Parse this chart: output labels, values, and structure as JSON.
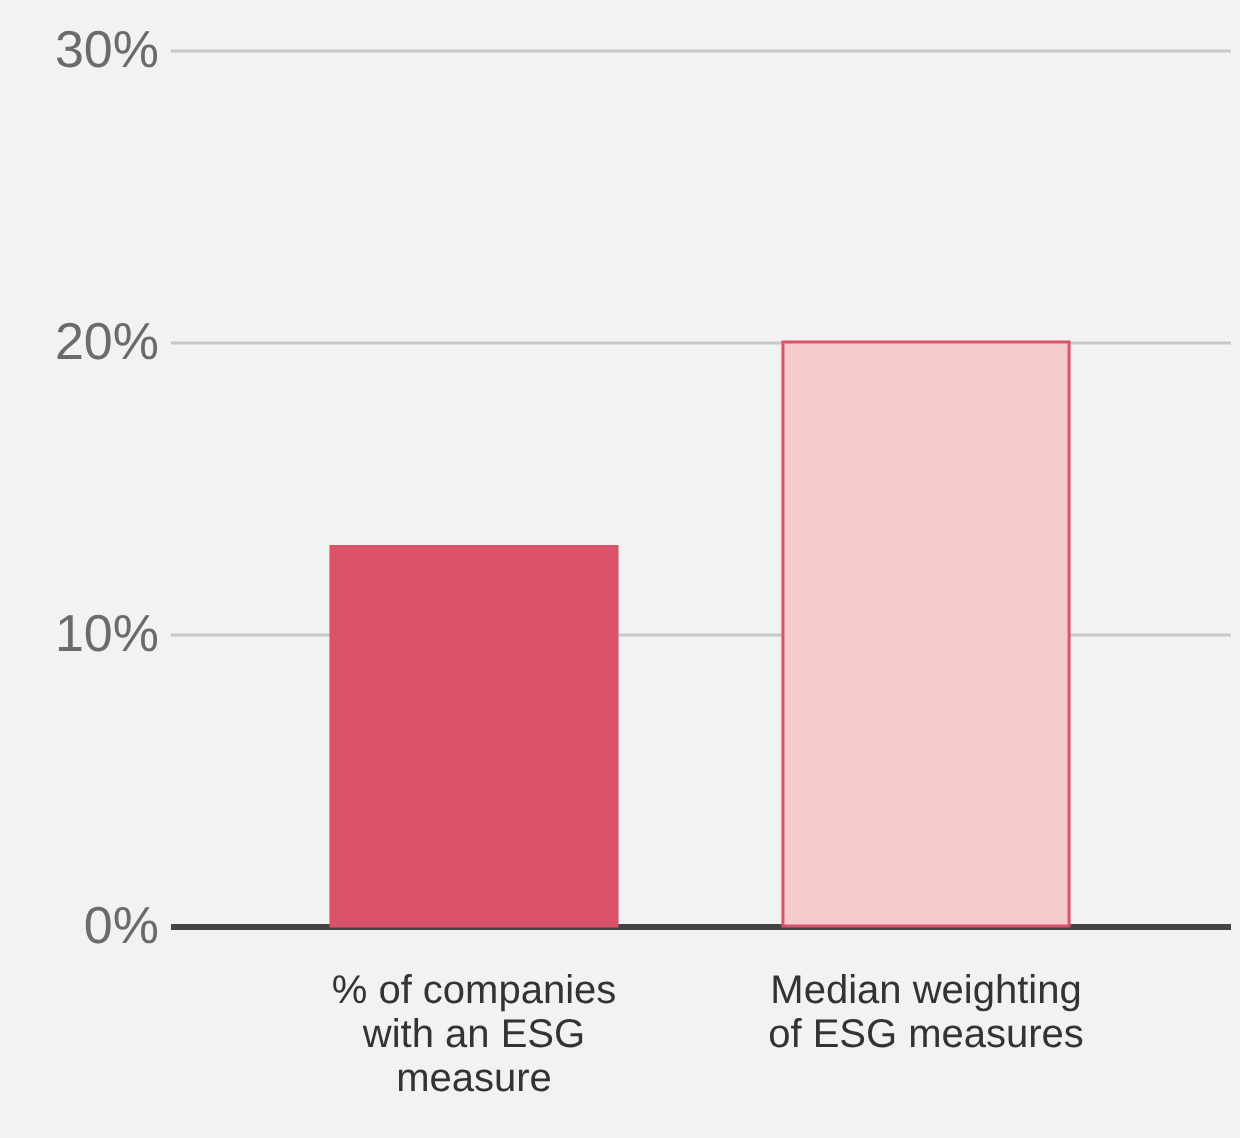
{
  "chart_data": {
    "type": "bar",
    "categories": [
      "% of companies with an ESG measure",
      "Median weighting of ESG measures"
    ],
    "values": [
      13,
      20
    ],
    "colors": [
      "#db536b",
      "#f5cacc"
    ],
    "ylim": [
      0,
      30
    ],
    "yticks": [
      {
        "value": 0,
        "label": "0%"
      },
      {
        "value": 10,
        "label": "10%"
      },
      {
        "value": 20,
        "label": "20%"
      },
      {
        "value": 30,
        "label": "30%"
      }
    ],
    "grid": "y"
  }
}
